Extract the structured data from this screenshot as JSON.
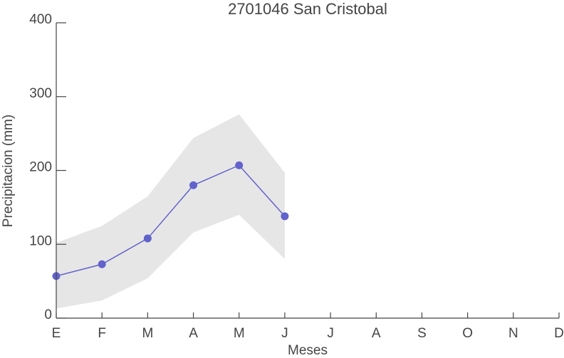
{
  "chart_data": {
    "type": "line",
    "title": "2701046 San Cristobal",
    "xlabel": "Meses",
    "ylabel": "Precipitacion (mm)",
    "categories": [
      "E",
      "F",
      "M",
      "A",
      "M",
      "J",
      "J",
      "A",
      "S",
      "O",
      "N",
      "D"
    ],
    "series": [
      {
        "name": "Precipitacion",
        "color": "#6262cc",
        "values": [
          57,
          73,
          108,
          180,
          207,
          138,
          null,
          null,
          null,
          null,
          null,
          null
        ],
        "lower": [
          13,
          24,
          54,
          116,
          140,
          80,
          null,
          null,
          null,
          null,
          null,
          null
        ],
        "upper": [
          102,
          125,
          165,
          244,
          276,
          197,
          null,
          null,
          null,
          null,
          null,
          null
        ],
        "band_color": "#e6e6e6"
      }
    ],
    "ylim": [
      0,
      400
    ],
    "yticks": [
      0,
      100,
      200,
      300,
      400
    ],
    "grid": false
  }
}
